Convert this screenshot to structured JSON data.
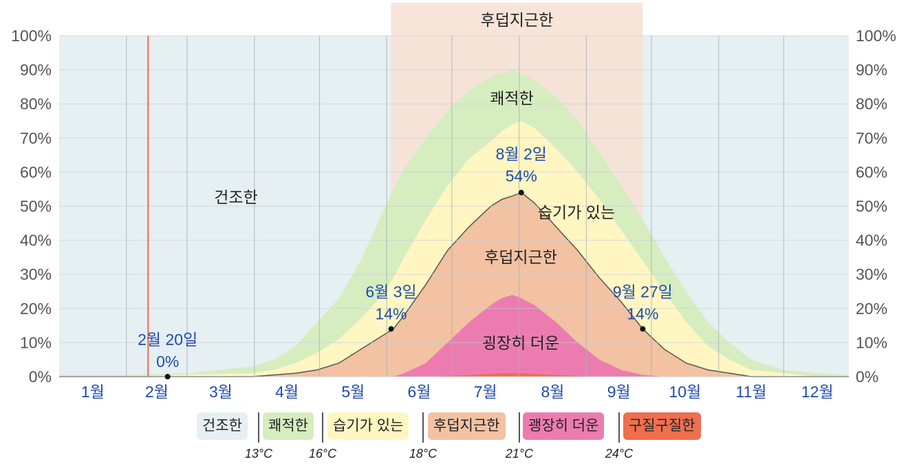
{
  "chart_data": {
    "type": "area",
    "title": "",
    "xlabel": "",
    "ylabel": "",
    "ylim": [
      0,
      100
    ],
    "yticks": [
      "0%",
      "10%",
      "20%",
      "30%",
      "40%",
      "50%",
      "60%",
      "70%",
      "80%",
      "90%",
      "100%"
    ],
    "months": [
      "1월",
      "2월",
      "3월",
      "4월",
      "5월",
      "6월",
      "7월",
      "8월",
      "9월",
      "10월",
      "11월",
      "12월"
    ],
    "grid": true,
    "x_unit": "day of year",
    "x": [
      1,
      30,
      60,
      90,
      100,
      110,
      120,
      130,
      140,
      150,
      155,
      160,
      170,
      180,
      190,
      200,
      205,
      210,
      214,
      220,
      230,
      240,
      250,
      260,
      270,
      280,
      290,
      300,
      310,
      320,
      335,
      350,
      365
    ],
    "series": [
      {
        "name": "후덥지근한",
        "color": "#f2c2a2",
        "values": [
          0,
          0,
          0,
          0,
          0.5,
          1,
          2,
          4,
          8,
          12,
          14,
          18,
          27,
          37,
          44,
          50,
          52,
          53,
          54,
          51,
          44,
          37,
          29,
          22,
          14,
          8,
          4,
          2,
          1,
          0,
          0,
          0,
          0
        ]
      },
      {
        "name": "습기가 있는",
        "color": "#fff6c2",
        "values": [
          0,
          0,
          0.5,
          1,
          2,
          4,
          7,
          11,
          17,
          24,
          29,
          35,
          46,
          56,
          64,
          69,
          72,
          74,
          75,
          73,
          67,
          60,
          52,
          43,
          34,
          25,
          16,
          9,
          5,
          2,
          1,
          0,
          0
        ]
      },
      {
        "name": "쾌적한",
        "color": "#d6edc0",
        "values": [
          0.5,
          0.5,
          1,
          3,
          5,
          9,
          16,
          23,
          34,
          48,
          55,
          61,
          70,
          78,
          84,
          88,
          89,
          90,
          89,
          87,
          82,
          75,
          66,
          56,
          46,
          35,
          25,
          16,
          10,
          5,
          2,
          1,
          0.5
        ]
      },
      {
        "name": "건조한",
        "color": "#e6eff2",
        "values": [
          100,
          100,
          100,
          100,
          100,
          100,
          100,
          100,
          100,
          100,
          100,
          100,
          100,
          100,
          100,
          100,
          100,
          100,
          100,
          100,
          100,
          100,
          100,
          100,
          100,
          100,
          100,
          100,
          100,
          100,
          100,
          100,
          100
        ]
      },
      {
        "name": "괭장히 더운",
        "color": "#ec7cb0",
        "values": [
          0,
          0,
          0,
          0,
          0,
          0,
          0,
          0,
          0,
          0,
          0,
          1,
          4,
          10,
          16,
          21,
          23,
          24,
          23,
          21,
          16,
          10,
          5,
          2,
          0.5,
          0,
          0,
          0,
          0,
          0,
          0,
          0,
          0
        ]
      },
      {
        "name": "구질구질한",
        "color": "#ef6f4e",
        "values": [
          0,
          0,
          0,
          0,
          0,
          0,
          0,
          0,
          0,
          0,
          0,
          0,
          0,
          0.2,
          0.5,
          0.8,
          1,
          1,
          1,
          0.8,
          0.5,
          0.2,
          0,
          0,
          0,
          0,
          0,
          0,
          0,
          0,
          0,
          0,
          0
        ]
      }
    ],
    "highlight_band": {
      "label": "후덥지근한",
      "start_day": 154,
      "end_day": 270,
      "color": "#f7e0d4"
    },
    "current_date_line_day": 42,
    "zone_labels": [
      "건조한",
      "쾌적한",
      "습기가 있는",
      "후덥지근한",
      "굉장히 더운"
    ],
    "annotations": [
      {
        "day": 51,
        "value": 0,
        "date": "2월 20일",
        "pct": "0%"
      },
      {
        "day": 154,
        "value": 14,
        "date": "6월 3일",
        "pct": "14%"
      },
      {
        "day": 214,
        "value": 54,
        "date": "8월 2일",
        "pct": "54%"
      },
      {
        "day": 270,
        "value": 14,
        "date": "9월 27일",
        "pct": "14%"
      }
    ]
  },
  "legend": {
    "items": [
      {
        "label": "건조한",
        "color": "#e6eff2"
      },
      {
        "label": "쾌적한",
        "color": "#d6edc0"
      },
      {
        "label": "습기가 있는",
        "color": "#fff6c2"
      },
      {
        "label": "후덥지근한",
        "color": "#f2c2a2"
      },
      {
        "label": "괭장히 더운",
        "color": "#ec7cb0"
      },
      {
        "label": "구질구질한",
        "color": "#ef6f4e"
      }
    ],
    "thresholds": [
      "13°C",
      "16°C",
      "18°C",
      "21°C",
      "24°C"
    ]
  }
}
